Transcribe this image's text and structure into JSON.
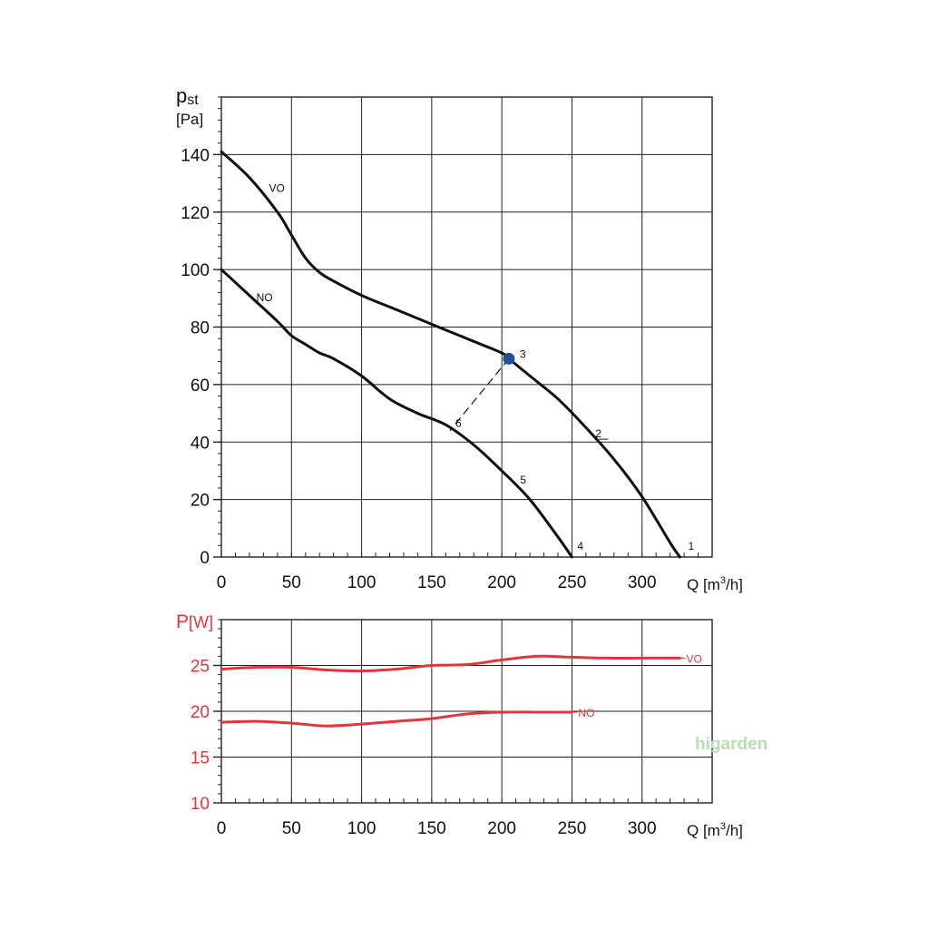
{
  "colors": {
    "pressure": "#111111",
    "power": "#e0373c",
    "grid": "#222222",
    "operating_point": "#1f4e9c",
    "watermark": "#b9ddb4"
  },
  "watermark": {
    "prefix": "hi",
    "text": "garden"
  },
  "chart_data": [
    {
      "type": "line",
      "ylabel_main": "p",
      "ylabel_sub": "st",
      "yunit": "[Pa]",
      "xlabel": "Q [m",
      "xlabel_sup": "3",
      "xlabel_end": "/h]",
      "xlim": [
        0,
        350
      ],
      "ylim": [
        0,
        160
      ],
      "xticks": [
        0,
        50,
        100,
        150,
        200,
        250,
        300
      ],
      "yticks": [
        0,
        20,
        40,
        60,
        80,
        100,
        120,
        140
      ],
      "grid": true,
      "series": [
        {
          "name": "VO",
          "x": [
            0,
            20,
            40,
            50,
            60,
            70,
            80,
            100,
            120,
            140,
            160,
            180,
            200,
            205,
            220,
            240,
            260,
            280,
            300,
            320,
            327
          ],
          "y": [
            141,
            132,
            120,
            112,
            104,
            99,
            96,
            91,
            87,
            83,
            79,
            75,
            71,
            69,
            63,
            55,
            45,
            34,
            21,
            5,
            0
          ]
        },
        {
          "name": "NO",
          "x": [
            0,
            20,
            40,
            50,
            60,
            70,
            80,
            100,
            120,
            140,
            160,
            180,
            200,
            220,
            240,
            250
          ],
          "y": [
            100,
            91,
            82,
            77,
            74,
            71,
            69,
            63,
            55,
            50,
            46,
            39,
            30,
            20,
            7,
            0
          ]
        }
      ],
      "point_labels": [
        {
          "text": "1",
          "x": 327,
          "y": 0
        },
        {
          "text": "2",
          "x": 268,
          "y": 41
        },
        {
          "text": "3",
          "x": 205,
          "y": 69
        },
        {
          "text": "4",
          "x": 250,
          "y": 0
        },
        {
          "text": "5",
          "x": 213,
          "y": 25
        },
        {
          "text": "6",
          "x": 163,
          "y": 44
        }
      ],
      "operating_point": {
        "x": 205,
        "y": 69
      },
      "dashed_line": {
        "x1": 205,
        "y1": 69,
        "x2": 163,
        "y2": 44
      }
    },
    {
      "type": "line",
      "ylabel_main": "P",
      "yunit": "[W]",
      "xlabel": "Q [m",
      "xlabel_sup": "3",
      "xlabel_end": "/h]",
      "xlim": [
        0,
        350
      ],
      "ylim": [
        10,
        30
      ],
      "xticks": [
        0,
        50,
        100,
        150,
        200,
        250,
        300
      ],
      "yticks": [
        10,
        15,
        20,
        25
      ],
      "grid": true,
      "series": [
        {
          "name": "VO",
          "x": [
            0,
            25,
            50,
            75,
            100,
            125,
            150,
            175,
            200,
            225,
            250,
            275,
            300,
            327
          ],
          "y": [
            24.6,
            24.8,
            24.8,
            24.5,
            24.4,
            24.6,
            25.0,
            25.1,
            25.6,
            26.0,
            25.9,
            25.8,
            25.8,
            25.8
          ]
        },
        {
          "name": "NO",
          "x": [
            0,
            25,
            50,
            75,
            100,
            125,
            150,
            175,
            200,
            225,
            250
          ],
          "y": [
            18.8,
            18.9,
            18.7,
            18.4,
            18.6,
            18.9,
            19.2,
            19.7,
            19.9,
            19.9,
            19.9
          ]
        }
      ]
    }
  ]
}
